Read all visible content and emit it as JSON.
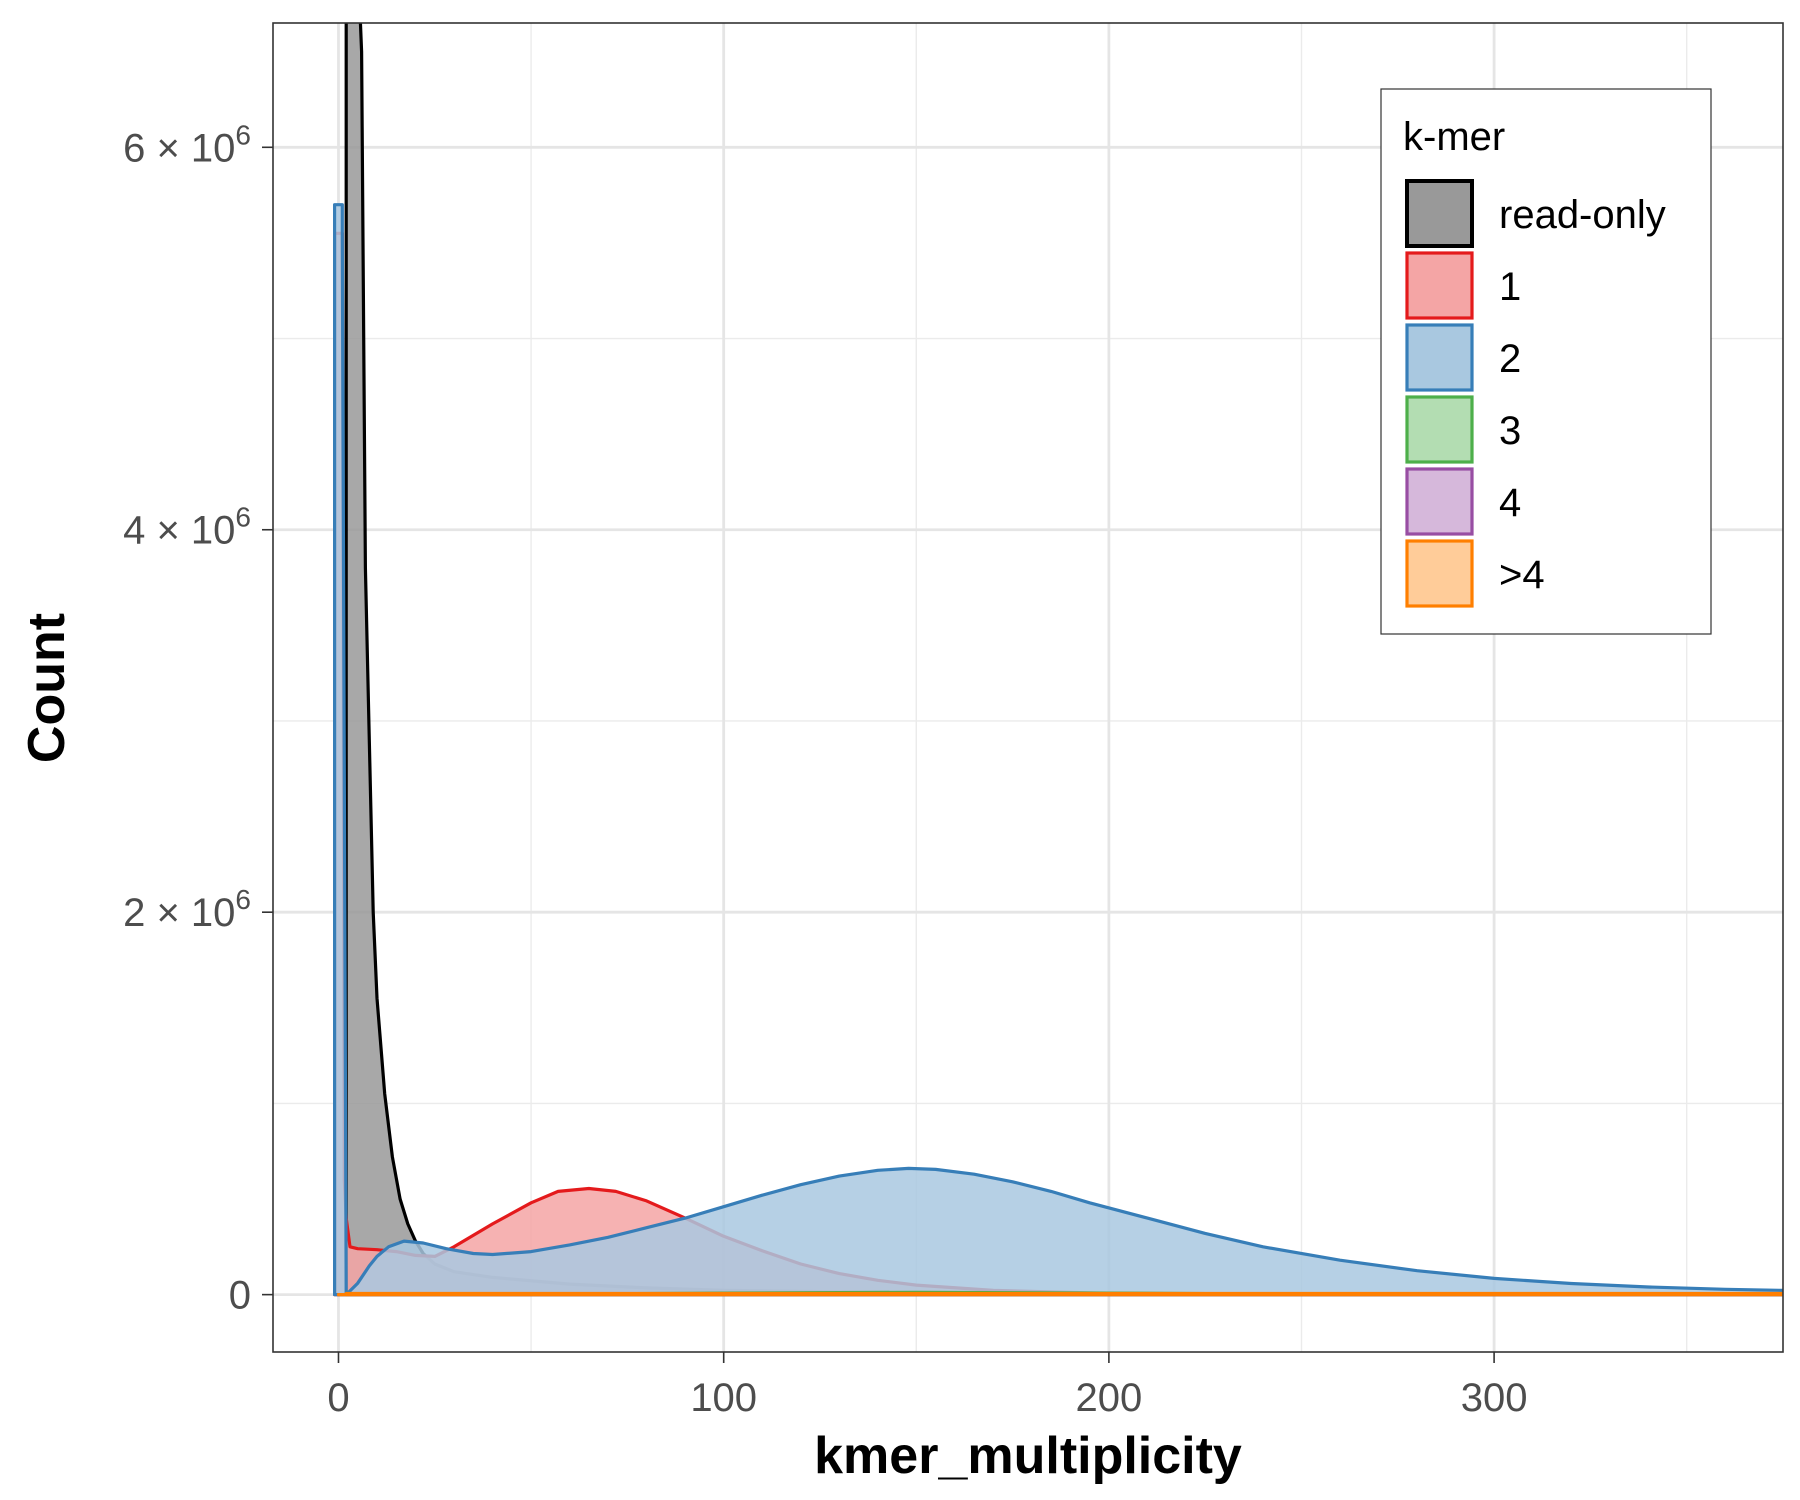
{
  "chart_data": {
    "type": "area",
    "xlabel": "kmer_multiplicity",
    "ylabel": "Count",
    "xlim": [
      -17,
      375
    ],
    "ylim": [
      -300000,
      6650000
    ],
    "x_ticks": [
      0,
      100,
      200,
      300
    ],
    "x_minor_ticks": [
      50,
      150,
      250,
      350
    ],
    "y_ticks": [
      {
        "value": 0,
        "mantissa": "0",
        "exponent": ""
      },
      {
        "value": 2000000,
        "mantissa": "2 × 10",
        "exponent": "6"
      },
      {
        "value": 4000000,
        "mantissa": "4 × 10",
        "exponent": "6"
      },
      {
        "value": 6000000,
        "mantissa": "6 × 10",
        "exponent": "6"
      }
    ],
    "y_minor_ticks": [
      1000000,
      3000000,
      5000000
    ],
    "grid": true,
    "legend": {
      "title": "k-mer",
      "position": "top-right"
    },
    "series": [
      {
        "name": "read-only",
        "color": "#000000",
        "fill": "#999999",
        "points": [
          [
            2,
            0
          ],
          [
            2,
            7000000
          ],
          [
            3,
            7000000
          ],
          [
            5,
            7000000
          ],
          [
            6,
            6500000
          ],
          [
            7,
            3800000
          ],
          [
            8,
            2900000
          ],
          [
            9,
            2000000
          ],
          [
            10,
            1550000
          ],
          [
            12,
            1050000
          ],
          [
            14,
            720000
          ],
          [
            16,
            500000
          ],
          [
            18,
            370000
          ],
          [
            20,
            280000
          ],
          [
            22,
            215000
          ],
          [
            25,
            160000
          ],
          [
            30,
            120000
          ],
          [
            40,
            90000
          ],
          [
            60,
            55000
          ],
          [
            80,
            35000
          ],
          [
            100,
            22000
          ],
          [
            150,
            9000
          ],
          [
            200,
            3000
          ],
          [
            300,
            500
          ],
          [
            375,
            0
          ],
          [
            375,
            0
          ]
        ]
      },
      {
        "name": "1",
        "color": "#E41A1C",
        "fill": "#F4A5A5",
        "points": [
          [
            -1,
            0
          ],
          [
            -1,
            5550000
          ],
          [
            0,
            5550000
          ],
          [
            1,
            5550000
          ],
          [
            1.5,
            600000
          ],
          [
            2,
            400000
          ],
          [
            3,
            250000
          ],
          [
            5,
            240000
          ],
          [
            10,
            235000
          ],
          [
            15,
            225000
          ],
          [
            20,
            205000
          ],
          [
            25,
            200000
          ],
          [
            30,
            250000
          ],
          [
            40,
            370000
          ],
          [
            50,
            480000
          ],
          [
            57,
            540000
          ],
          [
            65,
            555000
          ],
          [
            72,
            540000
          ],
          [
            80,
            490000
          ],
          [
            90,
            400000
          ],
          [
            100,
            305000
          ],
          [
            110,
            230000
          ],
          [
            120,
            160000
          ],
          [
            130,
            110000
          ],
          [
            140,
            75000
          ],
          [
            150,
            50000
          ],
          [
            170,
            22000
          ],
          [
            200,
            7000
          ],
          [
            250,
            1500
          ],
          [
            300,
            300
          ],
          [
            375,
            0
          ],
          [
            375,
            0
          ]
        ]
      },
      {
        "name": "2",
        "color": "#377EB8",
        "fill": "#A9C8E0",
        "points": [
          [
            -1,
            5550000
          ],
          [
            -1,
            5700000
          ],
          [
            1,
            5700000
          ],
          [
            1,
            5550000
          ],
          [
            2,
            0
          ],
          [
            5,
            60000
          ],
          [
            8,
            150000
          ],
          [
            10,
            200000
          ],
          [
            13,
            250000
          ],
          [
            17,
            280000
          ],
          [
            22,
            270000
          ],
          [
            28,
            240000
          ],
          [
            35,
            215000
          ],
          [
            40,
            210000
          ],
          [
            50,
            225000
          ],
          [
            60,
            260000
          ],
          [
            70,
            300000
          ],
          [
            80,
            350000
          ],
          [
            90,
            400000
          ],
          [
            100,
            460000
          ],
          [
            110,
            520000
          ],
          [
            120,
            575000
          ],
          [
            130,
            620000
          ],
          [
            140,
            650000
          ],
          [
            148,
            660000
          ],
          [
            155,
            655000
          ],
          [
            165,
            630000
          ],
          [
            175,
            590000
          ],
          [
            185,
            540000
          ],
          [
            195,
            480000
          ],
          [
            210,
            400000
          ],
          [
            225,
            320000
          ],
          [
            240,
            250000
          ],
          [
            260,
            180000
          ],
          [
            280,
            125000
          ],
          [
            300,
            85000
          ],
          [
            320,
            58000
          ],
          [
            340,
            40000
          ],
          [
            360,
            28000
          ],
          [
            375,
            22000
          ],
          [
            375,
            0
          ]
        ]
      },
      {
        "name": "3",
        "color": "#4DAF4A",
        "fill": "#B3DDB2",
        "points": [
          [
            0,
            0
          ],
          [
            50,
            2000
          ],
          [
            100,
            8000
          ],
          [
            150,
            12000
          ],
          [
            200,
            8000
          ],
          [
            250,
            3000
          ],
          [
            300,
            800
          ],
          [
            375,
            0
          ],
          [
            375,
            0
          ]
        ]
      },
      {
        "name": "4",
        "color": "#984EA3",
        "fill": "#D6B8DB",
        "points": [
          [
            0,
            0
          ],
          [
            100,
            1000
          ],
          [
            200,
            3000
          ],
          [
            300,
            2000
          ],
          [
            375,
            500
          ],
          [
            375,
            0
          ]
        ]
      },
      {
        "name": ">4",
        "color": "#FF7F00",
        "fill": "#FFCC99",
        "points": [
          [
            0,
            0
          ],
          [
            2,
            0
          ],
          [
            2,
            6000
          ],
          [
            375,
            6000
          ],
          [
            375,
            0
          ]
        ]
      }
    ]
  }
}
